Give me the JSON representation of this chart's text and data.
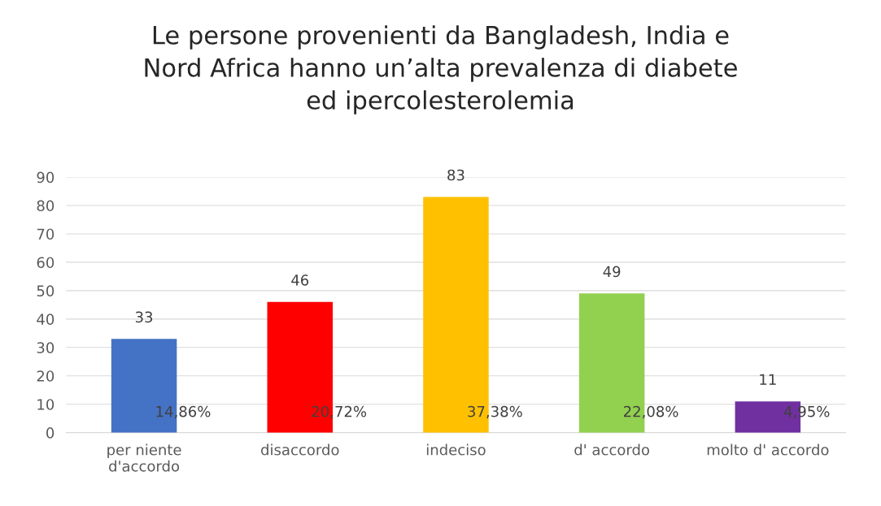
{
  "chart_data": {
    "type": "bar",
    "title": "Le persone provenienti da Bangladesh, India e\nNord Africa hanno un’alta prevalenza di diabete\ned ipercolesterolemia",
    "categories": [
      "per niente\nd'accordo",
      "disaccordo",
      "indeciso",
      "d' accordo",
      "molto d' accordo"
    ],
    "values": [
      33,
      46,
      83,
      49,
      11
    ],
    "colors": [
      "#4472c4",
      "#ff0000",
      "#ffc000",
      "#92d050",
      "#7030a0"
    ],
    "data_labels": true,
    "annotations": [
      "14,86%",
      "20,72%",
      "37,38%",
      "22,08%",
      "4,95%"
    ],
    "ylim": [
      0,
      90
    ],
    "yticks": [
      0,
      10,
      20,
      30,
      40,
      50,
      60,
      70,
      80,
      90
    ],
    "grid": "y",
    "legend": false
  }
}
